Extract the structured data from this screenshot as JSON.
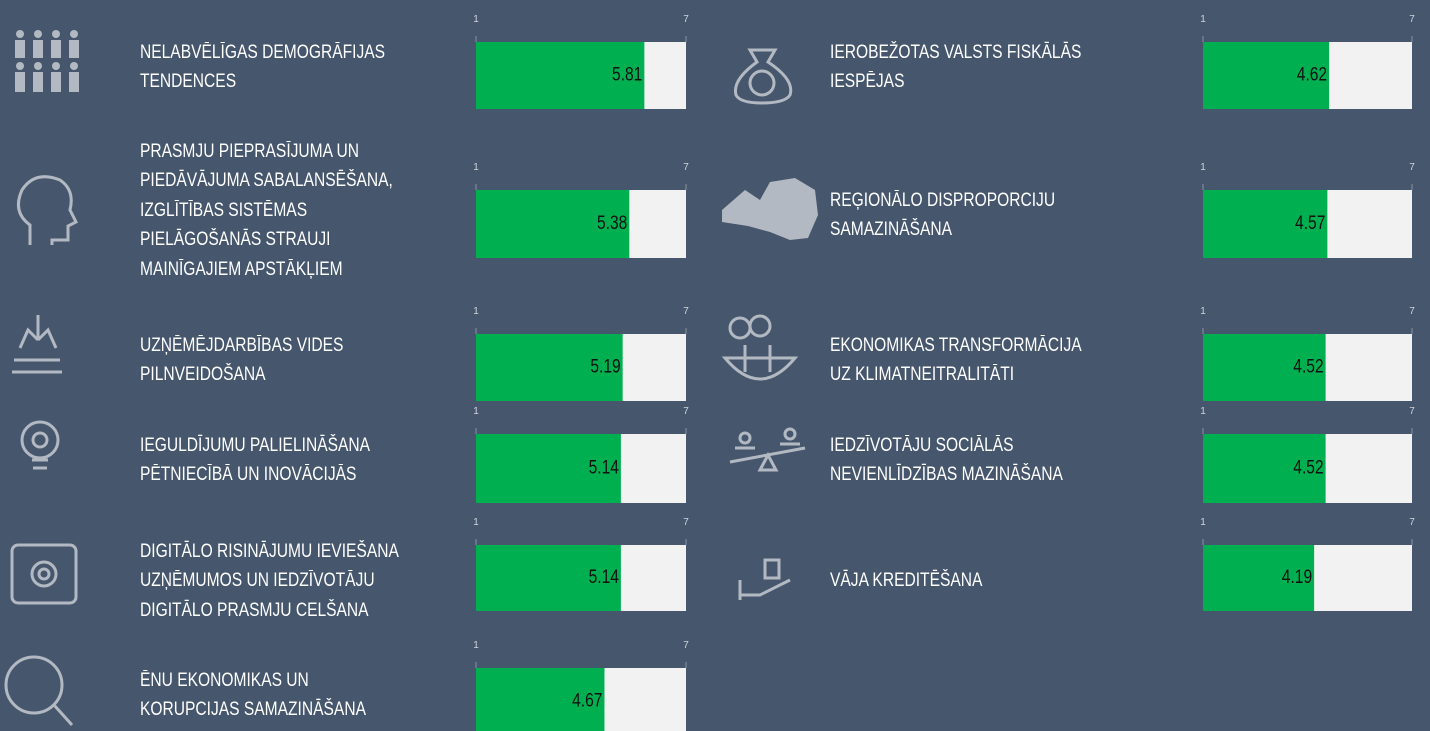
{
  "chart_data": [
    {
      "type": "bar",
      "title": [
        "NELABVĒLĪGAS DEMOGRĀFIJAS",
        "TENDENCES"
      ],
      "values": [
        5.81
      ],
      "xlim": [
        1,
        7
      ],
      "xticks": [
        1,
        7
      ],
      "color": "#00b050"
    },
    {
      "type": "bar",
      "title": [
        "PRASMJU PIEPRASĪJUMA UN",
        "PIEDĀVĀJUMA SABALANSĒŠANA,",
        "IZGLĪTĪBAS SISTĒMAS",
        "PIELĀGOŠANĀS STRAUJI",
        "MAINĪGAJIEM APSTĀKĻIEM"
      ],
      "values": [
        5.38
      ],
      "xlim": [
        1,
        7
      ],
      "xticks": [
        1,
        7
      ],
      "color": "#00b050"
    },
    {
      "type": "bar",
      "title": [
        "UZŅĒMĒJDARBĪBAS VIDES",
        "PILNVEIDOŠANA"
      ],
      "values": [
        5.19
      ],
      "xlim": [
        1,
        7
      ],
      "xticks": [
        1,
        7
      ],
      "color": "#00b050"
    },
    {
      "type": "bar",
      "title": [
        "IEGULDĪJUMU PALIELINĀŠANA",
        "PĒTNIECĪBĀ UN INOVĀCIJĀS"
      ],
      "values": [
        5.14
      ],
      "xlim": [
        1,
        7
      ],
      "xticks": [
        1,
        7
      ],
      "color": "#00b050"
    },
    {
      "type": "bar",
      "title": [
        "DIGITĀLO RISINĀJUMU IEVIEŠANA",
        "UZŅĒMUMOS UN IEDZĪVOTĀJU",
        "DIGITĀLO PRASMJU CELŠANA"
      ],
      "values": [
        5.14
      ],
      "xlim": [
        1,
        7
      ],
      "xticks": [
        1,
        7
      ],
      "color": "#00b050"
    },
    {
      "type": "bar",
      "title": [
        "ĒNU EKONOMIKAS UN",
        "KORUPCIJAS SAMAZINĀŠANA"
      ],
      "values": [
        4.67
      ],
      "xlim": [
        1,
        7
      ],
      "xticks": [
        1,
        7
      ],
      "color": "#00b050"
    },
    {
      "type": "bar",
      "title": [
        "IEROBEŽOTAS VALSTS FISKĀLĀS",
        "IESPĒJAS"
      ],
      "values": [
        4.62
      ],
      "xlim": [
        1,
        7
      ],
      "xticks": [
        1,
        7
      ],
      "color": "#00b050"
    },
    {
      "type": "bar",
      "title": [
        "REĢIONĀLO DISPROPORCIJU",
        "SAMAZINĀŠANA"
      ],
      "values": [
        4.57
      ],
      "xlim": [
        1,
        7
      ],
      "xticks": [
        1,
        7
      ],
      "color": "#00b050"
    },
    {
      "type": "bar",
      "title": [
        "EKONOMIKAS TRANSFORMĀCIJA",
        "UZ KLIMATNEITRALITĀTI"
      ],
      "values": [
        4.52
      ],
      "xlim": [
        1,
        7
      ],
      "xticks": [
        1,
        7
      ],
      "color": "#00b050"
    },
    {
      "type": "bar",
      "title": [
        "IEDZĪVOTĀJU SOCIĀLĀS",
        "NEVIENLĪDZĪBAS MAZINĀŠANA"
      ],
      "values": [
        4.52
      ],
      "xlim": [
        1,
        7
      ],
      "xticks": [
        1,
        7
      ],
      "color": "#00b050"
    },
    {
      "type": "bar",
      "title": [
        "VĀJA KREDITĒŠANA"
      ],
      "values": [
        4.19
      ],
      "xlim": [
        1,
        7
      ],
      "xticks": [
        1,
        7
      ],
      "color": "#00b050"
    }
  ]
}
